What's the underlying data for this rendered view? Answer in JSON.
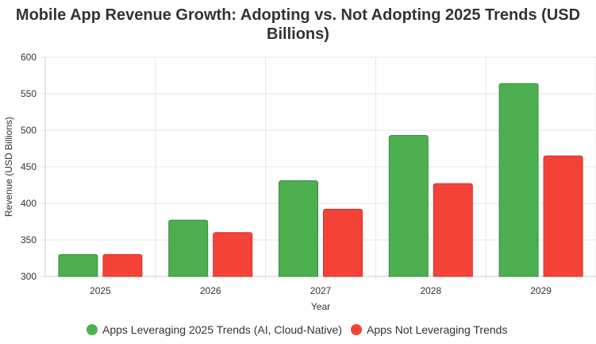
{
  "chart_data": {
    "type": "bar",
    "title_lines": [
      "Mobile App Revenue Growth: Adopting vs. Not Adopting 2025 Trends (USD",
      "Billions)"
    ],
    "xlabel": "Year",
    "ylabel": "Revenue (USD Billions)",
    "categories": [
      "2025",
      "2026",
      "2027",
      "2028",
      "2029"
    ],
    "ylim": [
      300,
      600
    ],
    "yticks": [
      "300",
      "350",
      "400",
      "450",
      "500",
      "550",
      "600"
    ],
    "grid": true,
    "legend_position": "bottom",
    "series": [
      {
        "name": "Apps Leveraging 2025 Trends (AI, Cloud-Native)",
        "color": "#4caf50",
        "border": "#3d8b40",
        "values": [
          330,
          377,
          431,
          493,
          564
        ]
      },
      {
        "name": "Apps Not Leveraging Trends",
        "color": "#f44336",
        "border": "#d32f2f",
        "values": [
          330,
          360,
          392,
          427,
          465
        ]
      }
    ]
  }
}
